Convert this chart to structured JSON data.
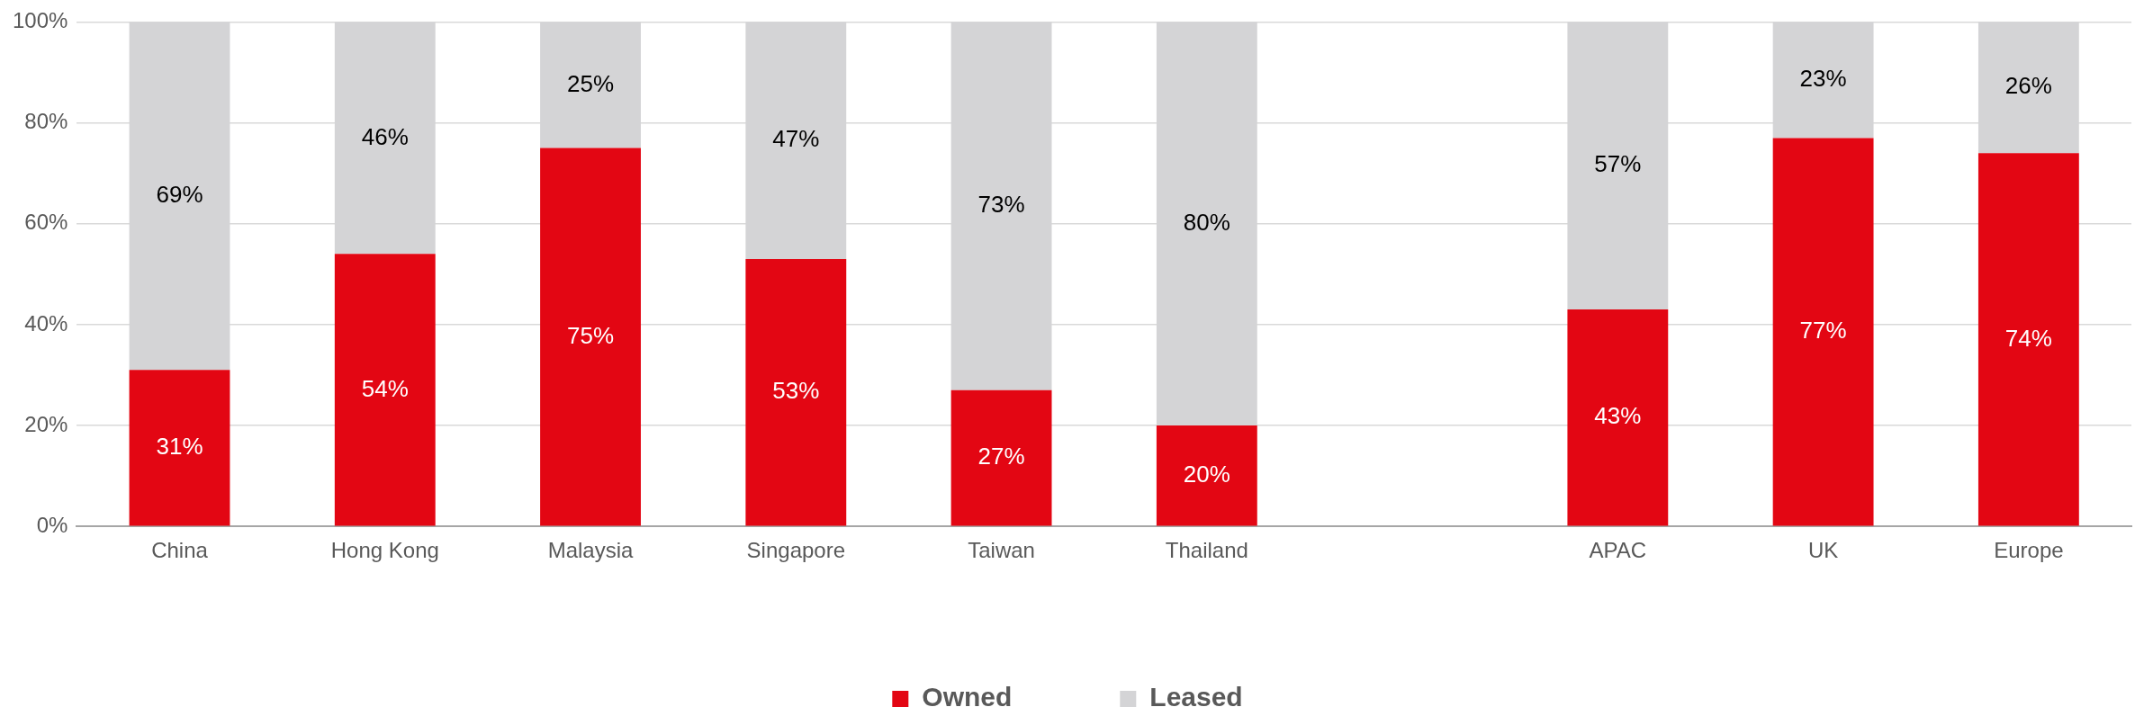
{
  "chart_data": {
    "type": "bar",
    "stacked": true,
    "categories": [
      "China",
      "Hong Kong",
      "Malaysia",
      "Singapore",
      "Taiwan",
      "Thailand",
      null,
      "APAC",
      "UK",
      "Europe"
    ],
    "series": [
      {
        "name": "Owned",
        "color": "#e30613",
        "values": [
          31,
          54,
          75,
          53,
          27,
          20,
          null,
          43,
          77,
          74
        ],
        "value_labels": [
          "31%",
          "54%",
          "75%",
          "53%",
          "27%",
          "20%",
          null,
          "43%",
          "77%",
          "74%"
        ]
      },
      {
        "name": "Leased",
        "color": "#d4d4d6",
        "values": [
          69,
          46,
          25,
          47,
          73,
          80,
          null,
          57,
          23,
          26
        ],
        "value_labels": [
          "69%",
          "46%",
          "25%",
          "47%",
          "73%",
          "80%",
          null,
          "57%",
          "23%",
          "26%"
        ]
      }
    ],
    "ylim": [
      0,
      100
    ],
    "yticks": [
      {
        "value": 0,
        "label": "0%"
      },
      {
        "value": 20,
        "label": "20%"
      },
      {
        "value": 40,
        "label": "40%"
      },
      {
        "value": 60,
        "label": "60%"
      },
      {
        "value": 80,
        "label": "80%"
      },
      {
        "value": 100,
        "label": "100%"
      }
    ],
    "grid": "y",
    "legend": "bottom"
  }
}
